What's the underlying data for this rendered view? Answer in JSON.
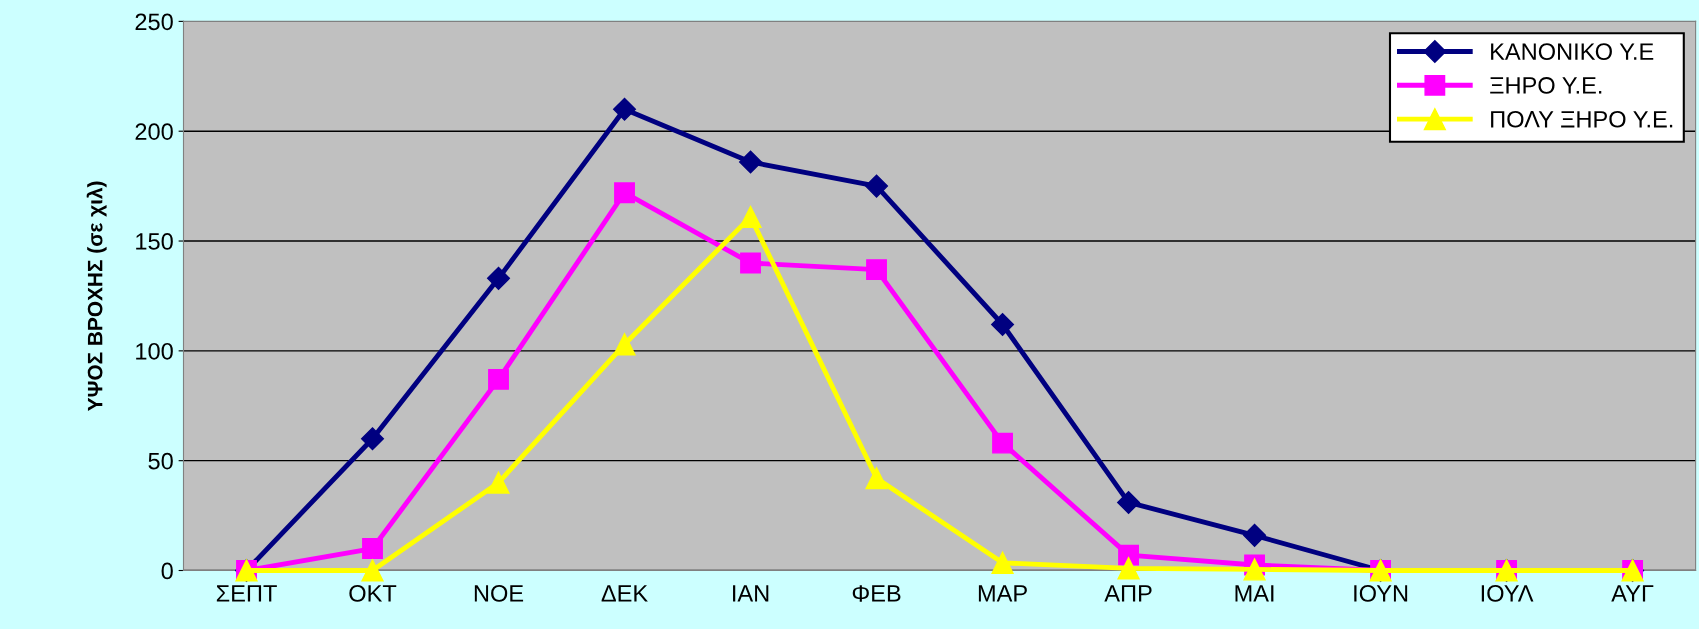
{
  "chart_data": {
    "type": "line",
    "ylabel": "ΥΨΟΣ ΒΡΟΧΗΣ (σε χιλ)",
    "categories": [
      "ΣΕΠΤ",
      "ΟΚΤ",
      "ΝΟΕ",
      "ΔΕΚ",
      "ΙΑΝ",
      "ΦΕΒ",
      "ΜΑΡ",
      "ΑΠΡ",
      "ΜΑΙ",
      "ΙΟΥΝ",
      "ΙΟΥΛ",
      "ΑΥΓ"
    ],
    "series": [
      {
        "name": "ΚΑΝΟΝΙΚΟ Υ.Ε",
        "color": "#000080",
        "marker": "diamond",
        "values": [
          0,
          60,
          133,
          210,
          186,
          175,
          112,
          31,
          16,
          0,
          0,
          0
        ]
      },
      {
        "name": "ΞΗΡΟ Υ.Ε.",
        "color": "#ff00ff",
        "marker": "square",
        "values": [
          0,
          10,
          87,
          172,
          140,
          137,
          58,
          7,
          2.5,
          0,
          0,
          0
        ]
      },
      {
        "name": "ΠΟΛΥ ΞΗΡΟ Υ.Ε.",
        "color": "#ffff00",
        "marker": "triangle",
        "values": [
          0,
          0,
          40,
          103,
          161,
          42,
          3.5,
          1,
          0.5,
          0,
          0,
          0
        ]
      }
    ],
    "ylim": [
      0,
      250
    ],
    "yticks": [
      0,
      50,
      100,
      150,
      200,
      250
    ],
    "grid": "y",
    "legend": "top right",
    "line_style": "solid"
  }
}
